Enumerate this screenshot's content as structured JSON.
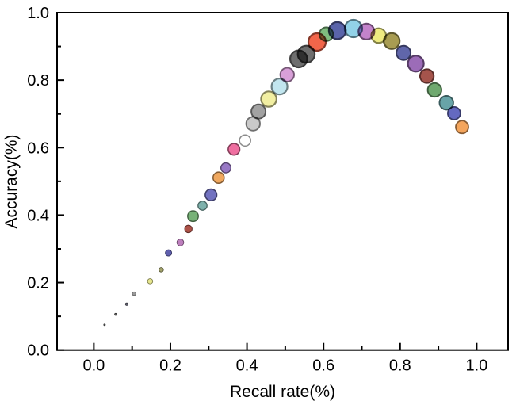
{
  "figure": {
    "background": "#ffffff",
    "frame_color": "#000000",
    "text_color": "#000000"
  },
  "chart_data": {
    "type": "bubble",
    "title": "",
    "xlabel": "Recall rate(%)",
    "ylabel": "Accuracy(%)",
    "xlim": [
      -0.096,
      1.082
    ],
    "ylim": [
      0.0,
      1.0
    ],
    "xticks": [
      0.0,
      0.2,
      0.4,
      0.6,
      0.8,
      1.0
    ],
    "xtick_labels": [
      "0.0",
      "0.2",
      "0.4",
      "0.6",
      "0.8",
      "1.0"
    ],
    "yticks": [
      0.0,
      0.2,
      0.4,
      0.6,
      0.8,
      1.0
    ],
    "ytick_labels": [
      "0.0",
      "0.2",
      "0.4",
      "0.6",
      "0.8",
      "1.0"
    ],
    "minor_ticks": true,
    "grid": false,
    "legend": null,
    "points_columns": [
      "recall",
      "accuracy",
      "radius_px",
      "color"
    ],
    "points": [
      [
        0.028,
        0.075,
        1.0,
        "#606060"
      ],
      [
        0.057,
        0.106,
        1.3,
        "#606060"
      ],
      [
        0.086,
        0.136,
        1.6,
        "#686878"
      ],
      [
        0.105,
        0.167,
        2.3,
        "#9a9a9a"
      ],
      [
        0.147,
        0.204,
        3.3,
        "#e6e68e"
      ],
      [
        0.176,
        0.238,
        2.8,
        "#a3a36b"
      ],
      [
        0.195,
        0.288,
        4.0,
        "#5f5fae"
      ],
      [
        0.226,
        0.319,
        4.3,
        "#bd7fbd"
      ],
      [
        0.247,
        0.359,
        4.7,
        "#ad5248"
      ],
      [
        0.259,
        0.397,
        6.7,
        "#77b277"
      ],
      [
        0.284,
        0.428,
        5.7,
        "#7fb2ad"
      ],
      [
        0.306,
        0.46,
        7.3,
        "#7272c0"
      ],
      [
        0.326,
        0.511,
        7.0,
        "#f0a85f"
      ],
      [
        0.345,
        0.54,
        6.3,
        "#9878c5"
      ],
      [
        0.366,
        0.595,
        7.3,
        "#ef6fa0"
      ],
      [
        0.395,
        0.621,
        7.0,
        "#ffffff"
      ],
      [
        0.416,
        0.671,
        8.7,
        "#c9c9c9"
      ],
      [
        0.43,
        0.707,
        9.0,
        "#a2a2a2"
      ],
      [
        0.457,
        0.744,
        9.7,
        "#f2efa2"
      ],
      [
        0.485,
        0.781,
        10.0,
        "#c2e6ef"
      ],
      [
        0.505,
        0.816,
        8.7,
        "#d8a0d8"
      ],
      [
        0.535,
        0.863,
        10.7,
        "#6e6e6e"
      ],
      [
        0.555,
        0.877,
        10.7,
        "#6e6e6e"
      ],
      [
        0.583,
        0.913,
        11.0,
        "#f2664a"
      ],
      [
        0.607,
        0.936,
        8.7,
        "#7fbd7f"
      ],
      [
        0.636,
        0.947,
        10.7,
        "#5a64aa"
      ],
      [
        0.678,
        0.953,
        11.0,
        "#92d2e8"
      ],
      [
        0.712,
        0.944,
        10.0,
        "#c383cb"
      ],
      [
        0.744,
        0.932,
        9.3,
        "#eeea80"
      ],
      [
        0.778,
        0.916,
        10.0,
        "#a89c52"
      ],
      [
        0.809,
        0.881,
        9.0,
        "#6066aa"
      ],
      [
        0.841,
        0.849,
        10.0,
        "#9c6cb8"
      ],
      [
        0.87,
        0.812,
        8.7,
        "#a5544c"
      ],
      [
        0.89,
        0.771,
        8.7,
        "#6fa96f"
      ],
      [
        0.921,
        0.733,
        8.7,
        "#68a4a8"
      ],
      [
        0.941,
        0.702,
        8.0,
        "#6469c0"
      ],
      [
        0.962,
        0.661,
        8.0,
        "#f4a55c"
      ]
    ]
  }
}
